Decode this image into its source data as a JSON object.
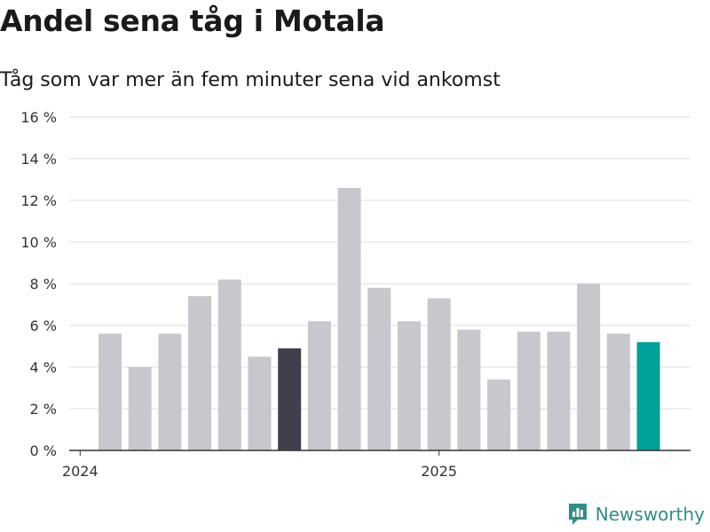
{
  "chart_data": {
    "type": "bar",
    "title": "Andel sena tåg i Motala",
    "subtitle": "Tåg som var mer än fem minuter sena vid ankomst",
    "xlabel": "",
    "ylabel": "",
    "ylim": [
      0,
      16
    ],
    "y_ticks": [
      0,
      2,
      4,
      6,
      8,
      10,
      12,
      14,
      16
    ],
    "y_tick_suffix": " %",
    "x_tick_labels": [
      {
        "label": "2024",
        "at_month": "2024-01"
      },
      {
        "label": "2025",
        "at_month": "2025-01"
      }
    ],
    "grid": true,
    "months": [
      "2024-02",
      "2024-03",
      "2024-04",
      "2024-05",
      "2024-06",
      "2024-07",
      "2024-08",
      "2024-09",
      "2024-10",
      "2024-11",
      "2024-12",
      "2025-01",
      "2025-02",
      "2025-03",
      "2025-04",
      "2025-05",
      "2025-06",
      "2025-07",
      "2025-08"
    ],
    "values": [
      5.6,
      4.0,
      5.6,
      7.4,
      8.2,
      4.5,
      4.9,
      6.2,
      12.6,
      7.8,
      6.2,
      7.3,
      5.8,
      3.4,
      5.7,
      5.7,
      8.0,
      5.6,
      5.2
    ],
    "highlights": {
      "2024-08": "dark",
      "2025-08": "accent"
    },
    "colors": {
      "default": "#c8c7ce",
      "dark": "#403f4c",
      "accent": "#00a19a",
      "grid": "#dddddd",
      "axis": "#333333"
    }
  },
  "brand": {
    "name": "Newsworthy",
    "logo_icon": "newsworthy-logo-icon",
    "color": "#2f8f85"
  }
}
